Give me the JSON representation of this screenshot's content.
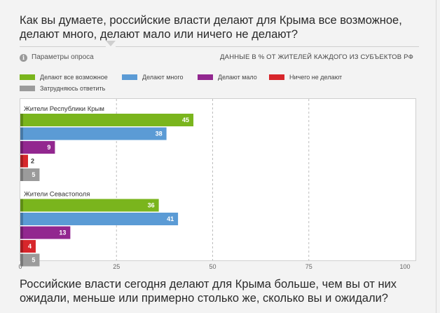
{
  "question1": "Как вы думаете, российские власти делают для Крыма все возможное, делают много, делают мало или ничего не делают?",
  "question2": "Российские власти сегодня делают для Крыма больше, чем вы от них ожидали, меньше или примерно столько же, сколько вы и ожидали?",
  "params_label": "Параметры опроса",
  "info_icon": "i",
  "colors": {
    "green": "#7ab51d",
    "blue": "#5b9bd5",
    "purple": "#92278f",
    "red": "#d7262b",
    "gray": "#9b9b9b"
  },
  "chart_data": {
    "type": "bar",
    "orientation": "horizontal",
    "title": "ДАННЫЕ В % ОТ ЖИТЕЛЕЙ КАЖДОГО ИЗ СУБЪЕКТОВ РФ",
    "categories": [
      "Жители Республики Крым",
      "Жители Севастополя"
    ],
    "series": [
      {
        "name": "Делают все возможное",
        "color": "#7ab51d",
        "values": [
          45,
          36
        ]
      },
      {
        "name": "Делают много",
        "color": "#5b9bd5",
        "values": [
          38,
          41
        ]
      },
      {
        "name": "Делают мало",
        "color": "#92278f",
        "values": [
          9,
          13
        ]
      },
      {
        "name": "Ничего не делают",
        "color": "#d7262b",
        "values": [
          2,
          4
        ]
      },
      {
        "name": "Затрудняюсь ответить",
        "color": "#9b9b9b",
        "values": [
          5,
          5
        ]
      }
    ],
    "xlim": [
      0,
      100
    ],
    "xticks": [
      "0",
      "25",
      "50",
      "75",
      "100"
    ],
    "grid": true,
    "legend": "top"
  }
}
